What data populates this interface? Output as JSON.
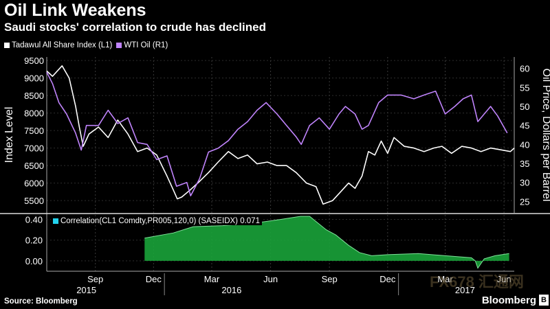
{
  "header": {
    "title": "Oil Link Weakens",
    "subtitle": "Saudi stocks' correlation to crude has declined"
  },
  "legend": [
    {
      "label": "Tadawul All Share Index (L1)",
      "color": "#ffffff"
    },
    {
      "label": "WTI Oil (R1)",
      "color": "#c084fc"
    }
  ],
  "lower_legend": {
    "label": "Correlation(CL1 Comdty,PR005,120,0) (SASEIDX) 0.071",
    "color": "#22d3ee"
  },
  "footer": {
    "source": "Source: Bloomberg",
    "brand": "Bloomberg",
    "brand_mark": "B"
  },
  "watermark": "FX678 汇通网",
  "chart_data": [
    {
      "type": "line",
      "ylabel": "Index Level",
      "y2label": "Oil Price, Dollars per Barrel",
      "x_ticks": [
        "Sep",
        "Dec",
        "Mar",
        "Jun",
        "Sep",
        "Dec",
        "Mar",
        "Jun"
      ],
      "year_labels": [
        "2015",
        "2016",
        "2017"
      ],
      "ylim": [
        5150,
        9600
      ],
      "y_ticks": [
        5500,
        6000,
        6500,
        7000,
        7500,
        8000,
        8500,
        9000,
        9500
      ],
      "y2lim": [
        22,
        63
      ],
      "y2_ticks": [
        25,
        30,
        35,
        40,
        45,
        50,
        55,
        60
      ],
      "series": [
        {
          "name": "Tadawul All Share Index (L1)",
          "axis": "left",
          "color": "#ffffff",
          "x": [
            "2015-07-01",
            "2015-07-10",
            "2015-07-25",
            "2015-08-05",
            "2015-08-15",
            "2015-08-21",
            "2015-08-27",
            "2015-09-05",
            "2015-09-20",
            "2015-10-05",
            "2015-10-20",
            "2015-11-05",
            "2015-11-20",
            "2015-12-05",
            "2015-12-20",
            "2016-01-05",
            "2016-01-15",
            "2016-01-21",
            "2016-01-28",
            "2016-02-10",
            "2016-02-25",
            "2016-03-10",
            "2016-03-25",
            "2016-04-10",
            "2016-04-25",
            "2016-05-10",
            "2016-05-25",
            "2016-06-10",
            "2016-06-25",
            "2016-07-10",
            "2016-07-25",
            "2016-08-10",
            "2016-08-25",
            "2016-09-05",
            "2016-09-20",
            "2016-10-05",
            "2016-10-15",
            "2016-10-25",
            "2016-11-05",
            "2016-11-15",
            "2016-11-25",
            "2016-12-05",
            "2016-12-15",
            "2016-12-25",
            "2017-01-10",
            "2017-01-25",
            "2017-02-10",
            "2017-02-25",
            "2017-03-10",
            "2017-03-25",
            "2017-04-10",
            "2017-04-25",
            "2017-05-10",
            "2017-05-25",
            "2017-06-10",
            "2017-06-25",
            "2017-07-01"
          ],
          "values": [
            9200,
            9050,
            9350,
            9000,
            8200,
            7600,
            7050,
            7400,
            7600,
            7300,
            7800,
            7400,
            6900,
            7000,
            6800,
            6200,
            5800,
            5550,
            5600,
            5800,
            6050,
            6300,
            6600,
            6900,
            6700,
            6800,
            6550,
            6600,
            6500,
            6500,
            6300,
            6000,
            5900,
            5400,
            5500,
            5800,
            6000,
            5850,
            6200,
            6900,
            6800,
            7200,
            6850,
            7300,
            7050,
            7000,
            6900,
            7000,
            7050,
            6850,
            7050,
            7000,
            6900,
            7000,
            6950,
            6900,
            7000
          ]
        },
        {
          "name": "WTI Oil (R1)",
          "axis": "right",
          "color": "#c084fc",
          "x": [
            "2015-07-01",
            "2015-07-10",
            "2015-07-20",
            "2015-08-01",
            "2015-08-15",
            "2015-08-24",
            "2015-09-01",
            "2015-09-20",
            "2015-10-05",
            "2015-10-20",
            "2015-11-05",
            "2015-11-20",
            "2015-12-05",
            "2015-12-20",
            "2016-01-05",
            "2016-01-20",
            "2016-02-05",
            "2016-02-11",
            "2016-02-25",
            "2016-03-10",
            "2016-03-25",
            "2016-04-10",
            "2016-04-25",
            "2016-05-10",
            "2016-05-25",
            "2016-06-08",
            "2016-06-25",
            "2016-07-10",
            "2016-07-25",
            "2016-08-02",
            "2016-08-15",
            "2016-08-30",
            "2016-09-15",
            "2016-09-30",
            "2016-10-10",
            "2016-10-25",
            "2016-11-05",
            "2016-11-15",
            "2016-12-01",
            "2016-12-15",
            "2017-01-05",
            "2017-01-25",
            "2017-02-10",
            "2017-02-28",
            "2017-03-15",
            "2017-03-30",
            "2017-04-12",
            "2017-04-25",
            "2017-05-05",
            "2017-05-25",
            "2017-06-05",
            "2017-06-15",
            "2017-06-20"
          ],
          "values": [
            59,
            56,
            51,
            48,
            43,
            38.5,
            45,
            45,
            49,
            45.5,
            47,
            40.5,
            40,
            36,
            37,
            29,
            30,
            26.5,
            31,
            38,
            39,
            41,
            44,
            46,
            49,
            51,
            48,
            45,
            42,
            40,
            45,
            47,
            44,
            48,
            50,
            48,
            44,
            45,
            51,
            53,
            53,
            52,
            53,
            54,
            48,
            50,
            52,
            53,
            46,
            50,
            47.5,
            44.5,
            43
          ]
        }
      ]
    },
    {
      "type": "area",
      "series_name": "Correlation(CL1 Comdty,PR005,120,0) (SASEIDX)",
      "ylim": [
        -0.1,
        0.45
      ],
      "y_ticks": [
        0.0,
        0.2,
        0.4
      ],
      "y_tick_labels": [
        "0.00",
        "0.20",
        "0.40"
      ],
      "color": "#1aa33a",
      "x": [
        "2015-12-01",
        "2016-01-15",
        "2016-02-15",
        "2016-04-01",
        "2016-05-15",
        "2016-07-01",
        "2016-08-01",
        "2016-08-15",
        "2016-09-10",
        "2016-09-25",
        "2016-10-15",
        "2016-11-01",
        "2016-11-20",
        "2016-12-15",
        "2017-02-01",
        "2017-03-15",
        "2017-04-25",
        "2017-05-01",
        "2017-05-05",
        "2017-05-15",
        "2017-06-01",
        "2017-06-23"
      ],
      "values": [
        0.22,
        0.27,
        0.33,
        0.34,
        0.36,
        0.4,
        0.43,
        0.43,
        0.3,
        0.25,
        0.15,
        0.08,
        0.05,
        0.06,
        0.07,
        0.05,
        0.03,
        0.0,
        -0.07,
        0.02,
        0.05,
        0.071
      ]
    }
  ]
}
